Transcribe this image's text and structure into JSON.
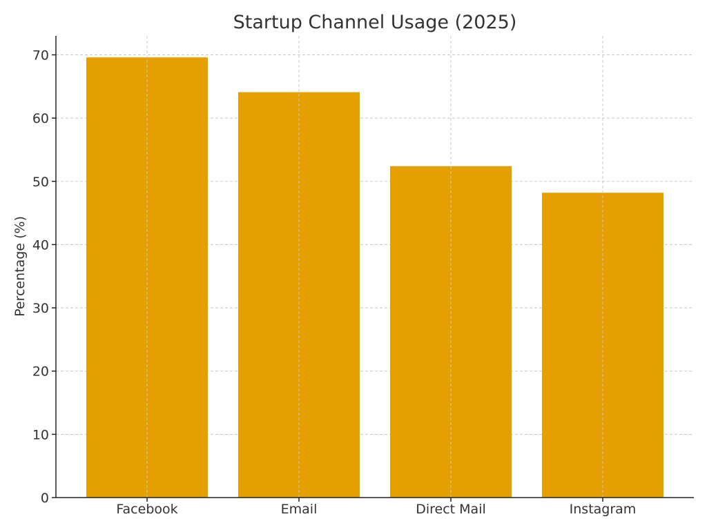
{
  "chart_data": {
    "type": "bar",
    "title": "Startup Channel Usage (2025)",
    "xlabel": "",
    "ylabel": "Percentage (%)",
    "categories": [
      "Facebook",
      "Email",
      "Direct Mail",
      "Instagram"
    ],
    "values": [
      69.6,
      64.1,
      52.4,
      48.2
    ],
    "yticks": [
      0,
      10,
      20,
      30,
      40,
      50,
      60,
      70
    ],
    "ylim": [
      0,
      73
    ],
    "grid": true,
    "bar_color": "#E69F00"
  }
}
